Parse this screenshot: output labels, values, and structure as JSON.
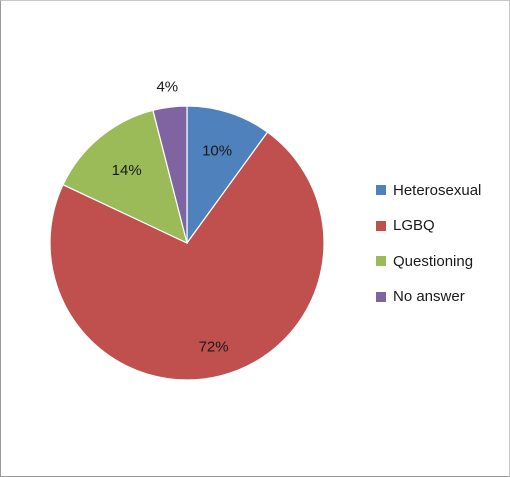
{
  "chart_data": {
    "type": "pie",
    "title": "",
    "slices": [
      {
        "label": "Heterosexual",
        "value": 10,
        "data_label": "10%",
        "color": "#4F81BD"
      },
      {
        "label": "LGBQ",
        "value": 72,
        "data_label": "72%",
        "color": "#C0504D"
      },
      {
        "label": "Questioning",
        "value": 14,
        "data_label": "14%",
        "color": "#9BBB59"
      },
      {
        "label": "No answer",
        "value": 4,
        "data_label": "4%",
        "color": "#8064A2"
      }
    ],
    "start_angle_deg": 0,
    "direction": "clockwise",
    "legend_placement": "right"
  }
}
